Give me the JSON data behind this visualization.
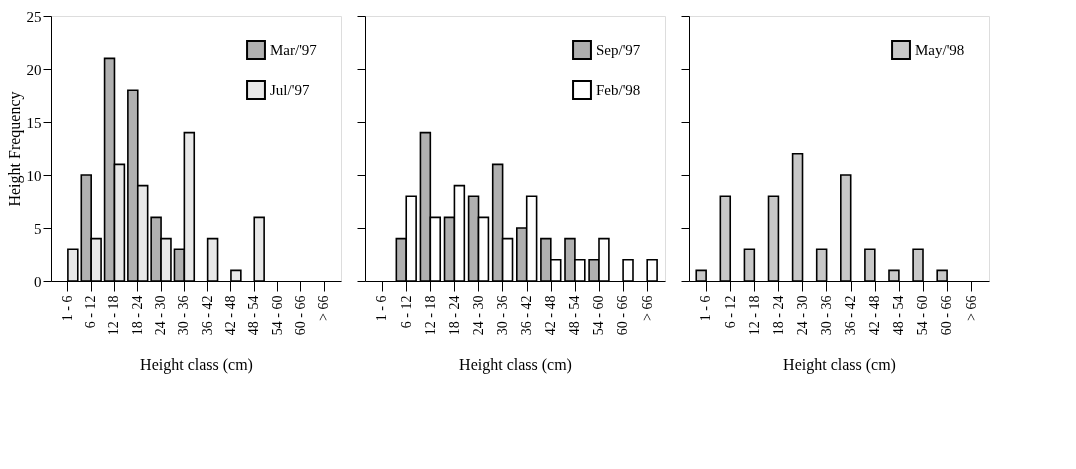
{
  "chart_data": [
    {
      "type": "bar",
      "xlabel": "Height class (cm)",
      "ylabel": "Height Frequency",
      "categories": [
        "1 - 6",
        "6 - 12",
        "12 - 18",
        "18 - 24",
        "24 - 30",
        "30 - 36",
        "36 - 42",
        "42 - 48",
        "48 - 54",
        "54 - 60",
        "60 - 66",
        "> 66"
      ],
      "series": [
        {
          "name": "Mar/'97",
          "color": "#b0b0b0",
          "values": [
            null,
            10,
            21,
            18,
            6,
            3,
            null,
            null,
            null,
            null,
            null,
            null
          ]
        },
        {
          "name": "Jul/'97",
          "color": "#e8e8e8",
          "values": [
            3,
            4,
            11,
            9,
            4,
            14,
            4,
            1,
            6,
            null,
            null,
            null
          ]
        }
      ],
      "ylim": [
        0,
        25
      ],
      "yticks": [
        0,
        5,
        10,
        15,
        20,
        25
      ],
      "grid": false,
      "legend": "top right"
    },
    {
      "type": "bar",
      "xlabel": "Height class (cm)",
      "categories": [
        "1 - 6",
        "6 - 12",
        "12 - 18",
        "18 - 24",
        "24 - 30",
        "30 - 36",
        "36 - 42",
        "42 - 48",
        "48 - 54",
        "54 - 60",
        "60 - 66",
        "> 66"
      ],
      "series": [
        {
          "name": "Sep/'97",
          "color": "#b0b0b0",
          "values": [
            null,
            4,
            14,
            6,
            8,
            11,
            5,
            4,
            4,
            2,
            null,
            null
          ]
        },
        {
          "name": "Feb/'98",
          "color": "#ffffff",
          "values": [
            null,
            8,
            6,
            9,
            6,
            4,
            8,
            2,
            2,
            4,
            2,
            2
          ]
        }
      ],
      "ylim": [
        0,
        25
      ],
      "yticks": [
        {
          "value": 0,
          "label": null
        },
        {
          "value": 5,
          "label": null
        },
        {
          "value": 10,
          "label": null
        },
        {
          "value": 15,
          "label": null
        },
        {
          "value": 20,
          "label": null
        },
        {
          "value": 25,
          "label": null
        }
      ],
      "tick_labels": "x",
      "grid": false,
      "legend": "top right"
    },
    {
      "type": "bar",
      "xlabel": "Height class (cm)",
      "categories": [
        "1 - 6",
        "6 - 12",
        "12 - 18",
        "18 - 24",
        "24 - 30",
        "30 - 36",
        "36 - 42",
        "42 - 48",
        "48 - 54",
        "54 - 60",
        "60 - 66",
        "> 66"
      ],
      "series": [
        {
          "name": "May/'98",
          "color": "#c8c8c8",
          "values": [
            1,
            8,
            3,
            8,
            12,
            3,
            10,
            3,
            1,
            3,
            1,
            null
          ]
        }
      ],
      "ylim": [
        0,
        25
      ],
      "yticks": [
        {
          "value": 0,
          "label": null
        },
        {
          "value": 5,
          "label": null
        },
        {
          "value": 10,
          "label": null
        },
        {
          "value": 15,
          "label": null
        },
        {
          "value": 20,
          "label": null
        },
        {
          "value": 25,
          "label": null
        }
      ],
      "tick_labels": "x",
      "grid": false,
      "legend": "top right"
    }
  ]
}
